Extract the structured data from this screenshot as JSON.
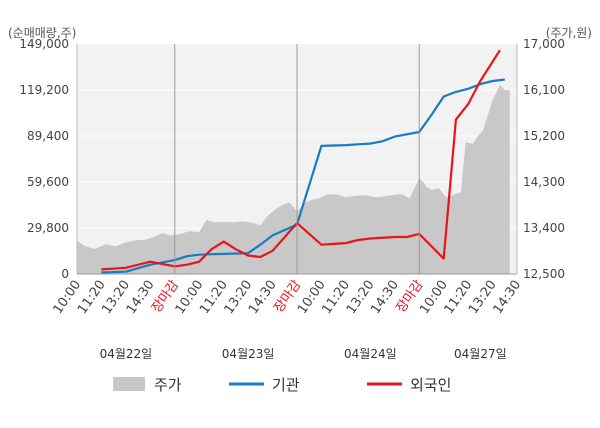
{
  "chart_data": {
    "type": "line",
    "left_unit": "(순매매량,주)",
    "right_unit": "(주가,원)",
    "left_axis": {
      "ticks": [
        "149,000",
        "119,200",
        "89,400",
        "59,600",
        "29,800",
        "0"
      ],
      "range": [
        0,
        149000
      ]
    },
    "right_axis": {
      "ticks": [
        "17,000",
        "16,100",
        "15,200",
        "14,300",
        "13,400",
        "12,500"
      ],
      "range": [
        12500,
        17000
      ]
    },
    "x_labels": [
      "10:00",
      "11:20",
      "13:20",
      "14:30",
      "장마감",
      "10:00",
      "11:20",
      "13:20",
      "14:30",
      "장마감",
      "10:00",
      "11:20",
      "13:20",
      "14:30",
      "장마감",
      "10:00",
      "11:20",
      "13:20",
      "14:30"
    ],
    "x_closing_indices": [
      4,
      9,
      14
    ],
    "dates": [
      "04월22일",
      "04월23일",
      "04월24일",
      "04월27일"
    ],
    "legend": [
      "주가",
      "기관",
      "외국인"
    ],
    "colors": {
      "price": "#c8c8c8",
      "institution": "#1a7ac4",
      "foreign": "#e8141c"
    },
    "series": [
      {
        "name": "주가",
        "x": [
          0,
          0.3,
          0.7,
          1.2,
          1.6,
          2,
          2.4,
          2.8,
          3.2,
          3.5,
          3.8,
          4.2,
          4.6,
          5,
          5.3,
          5.6,
          6,
          6.4,
          6.8,
          7.2,
          7.5,
          7.8,
          8.1,
          8.4,
          8.7,
          9,
          9.3,
          9.6,
          9.9,
          10.2,
          10.6,
          11,
          11.4,
          11.8,
          12.2,
          12.6,
          13,
          13.3,
          13.6,
          14,
          14.2,
          14.3,
          14.5,
          14.8,
          15.1,
          15.4,
          15.7,
          15.9,
          16.2,
          16.4,
          16.6,
          16.8,
          17,
          17.3,
          17.5,
          17.7
        ],
        "values": [
          13150,
          13050,
          12990,
          13080,
          13040,
          13120,
          13160,
          13170,
          13240,
          13300,
          13260,
          13280,
          13340,
          13320,
          13560,
          13510,
          13520,
          13510,
          13530,
          13500,
          13450,
          13640,
          13760,
          13850,
          13900,
          13720,
          13890,
          13950,
          13980,
          14050,
          14060,
          14000,
          14030,
          14040,
          14000,
          14020,
          14050,
          14060,
          13980,
          14370,
          14280,
          14200,
          14150,
          14180,
          14000,
          14050,
          14100,
          15080,
          15050,
          15200,
          15300,
          15600,
          15900,
          16200,
          16100,
          16100
        ]
      },
      {
        "name": "기관",
        "x": [
          1,
          2,
          3,
          4,
          4.5,
          5,
          5.5,
          6,
          7,
          7.5,
          8,
          9,
          10,
          11,
          11.5,
          12,
          12.5,
          13,
          14,
          14.5,
          15,
          15.5,
          16,
          16.5,
          17,
          17.5
        ],
        "values": [
          1000,
          1500,
          6000,
          9000,
          11500,
          12500,
          12800,
          13000,
          13500,
          19000,
          25000,
          32000,
          83000,
          83500,
          84000,
          84500,
          86000,
          89000,
          92000,
          103000,
          115000,
          118000,
          120000,
          123000,
          125000,
          126000
        ]
      },
      {
        "name": "외국인",
        "x": [
          1,
          2,
          3,
          4,
          4.5,
          5,
          5.5,
          6,
          6.5,
          7,
          7.5,
          8,
          9,
          10,
          10.5,
          11,
          11.5,
          12,
          13,
          13.5,
          14,
          15,
          15.5,
          16,
          16.5,
          17.3
        ],
        "values": [
          3000,
          4000,
          8000,
          5000,
          6000,
          8000,
          16000,
          21000,
          16000,
          12000,
          11000,
          15000,
          33000,
          19000,
          19500,
          20000,
          22000,
          23000,
          24000,
          24000,
          26000,
          10000,
          100000,
          110000,
          125000,
          145000
        ]
      }
    ]
  }
}
